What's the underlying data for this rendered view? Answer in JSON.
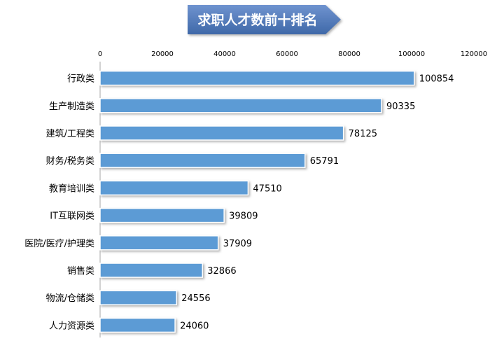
{
  "chart_data": {
    "type": "bar",
    "orientation": "horizontal",
    "title": "求职人才数前十排名",
    "categories": [
      "行政类",
      "生产制造类",
      "建筑/工程类",
      "财务/税务类",
      "教育培训类",
      "IT互联网类",
      "医院/医疗/护理类",
      "销售类",
      "物流/仓储类",
      "人力资源类"
    ],
    "values": [
      100854,
      90335,
      78125,
      65791,
      47510,
      39809,
      37909,
      32866,
      24556,
      24060
    ],
    "xlim": [
      0,
      120000
    ],
    "xticks": [
      0,
      20000,
      40000,
      60000,
      80000,
      100000,
      120000
    ],
    "axis_position": "top",
    "grid": false,
    "data_labels": true,
    "bar_color": "#5b9bd5",
    "title_banner_color": "#4a72b0"
  }
}
